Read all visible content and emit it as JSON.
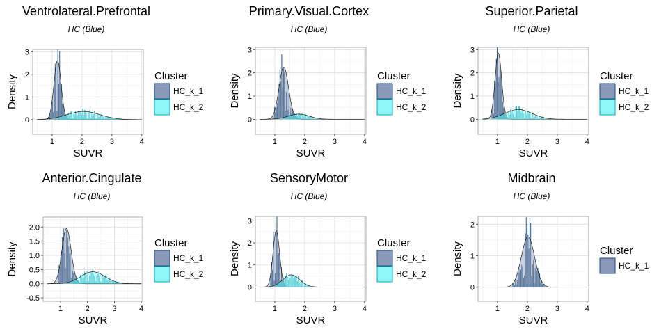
{
  "chart_data": [
    {
      "type": "histogram+density",
      "title": "Ventrolateral.Prefrontal",
      "subtitle": "HC (Blue)",
      "xlabel": "SUVR",
      "ylabel": "Density",
      "xlim": [
        0.35,
        4.05
      ],
      "ylim": [
        -0.65,
        3.1
      ],
      "xticks": [
        1,
        2,
        3,
        4
      ],
      "yticks": [
        0,
        1,
        2,
        3
      ],
      "ytick_labels": [
        "0",
        "1",
        "2",
        "3"
      ],
      "grid": true,
      "legend": {
        "title": "Cluster",
        "position": "right"
      },
      "series": [
        {
          "name": "HC_k_1",
          "color": "#1f4e79",
          "fill": "#8b9ab8",
          "curve": {
            "mu": 1.18,
            "sigma": 0.12,
            "peak": 2.6
          },
          "hist_range": [
            0.85,
            1.6
          ]
        },
        {
          "name": "HC_k_2",
          "color": "#17a3b8",
          "fill": "#8ef7f7",
          "curve": {
            "mu": 2.05,
            "sigma": 0.55,
            "peak": 0.36
          },
          "hist_range": [
            1.2,
            3.6
          ]
        }
      ]
    },
    {
      "type": "histogram+density",
      "title": "Primary.Visual.Cortex",
      "subtitle": "HC (Blue)",
      "xlabel": "SUVR",
      "ylabel": "Density",
      "xlim": [
        0.35,
        4.05
      ],
      "ylim": [
        -0.65,
        3.1
      ],
      "xticks": [
        1,
        2,
        3,
        4
      ],
      "yticks": [
        0,
        1,
        2,
        3
      ],
      "ytick_labels": [
        "0",
        "1",
        "2",
        "3"
      ],
      "grid": true,
      "legend": {
        "title": "Cluster",
        "position": "right"
      },
      "series": [
        {
          "name": "HC_k_1",
          "color": "#1f4e79",
          "fill": "#8b9ab8",
          "curve": {
            "mu": 1.3,
            "sigma": 0.16,
            "peak": 2.25
          },
          "hist_range": [
            0.95,
            1.8
          ]
        },
        {
          "name": "HC_k_2",
          "color": "#17a3b8",
          "fill": "#8ef7f7",
          "curve": {
            "mu": 1.8,
            "sigma": 0.35,
            "peak": 0.22
          },
          "hist_range": [
            1.3,
            2.5
          ]
        }
      ]
    },
    {
      "type": "histogram+density",
      "title": "Superior.Parietal",
      "subtitle": "HC (Blue)",
      "xlabel": "SUVR",
      "ylabel": "Density",
      "xlim": [
        0.35,
        4.05
      ],
      "ylim": [
        -0.65,
        3.1
      ],
      "xticks": [
        1,
        2,
        3,
        4
      ],
      "yticks": [
        0,
        1,
        2,
        3
      ],
      "ytick_labels": [
        "0",
        "1",
        "2",
        "3"
      ],
      "grid": true,
      "legend": {
        "title": "Cluster",
        "position": "right"
      },
      "series": [
        {
          "name": "HC_k_1",
          "color": "#1f4e79",
          "fill": "#8b9ab8",
          "curve": {
            "mu": 1.03,
            "sigma": 0.11,
            "peak": 2.85
          },
          "hist_range": [
            0.8,
            1.35
          ]
        },
        {
          "name": "HC_k_2",
          "color": "#17a3b8",
          "fill": "#8ef7f7",
          "curve": {
            "mu": 1.7,
            "sigma": 0.45,
            "peak": 0.42
          },
          "hist_range": [
            1.0,
            3.1
          ]
        }
      ]
    },
    {
      "type": "histogram+density",
      "title": "Anterior.Cingulate",
      "subtitle": "HC (Blue)",
      "xlabel": "SUVR",
      "ylabel": "Density",
      "xlim": [
        0.35,
        4.05
      ],
      "ylim": [
        -0.62,
        2.35
      ],
      "xticks": [
        1,
        2,
        3,
        4
      ],
      "yticks": [
        -0.5,
        0,
        0.5,
        1,
        1.5,
        2
      ],
      "ytick_labels": [
        "-0.5",
        "0.0",
        "0.5",
        "1.0",
        "1.5",
        "2.0"
      ],
      "grid": true,
      "legend": {
        "title": "Cluster",
        "position": "right"
      },
      "series": [
        {
          "name": "HC_k_1",
          "color": "#1f4e79",
          "fill": "#8b9ab8",
          "curve": {
            "mu": 1.22,
            "sigma": 0.17,
            "peak": 1.95
          },
          "hist_range": [
            0.9,
            1.75
          ]
        },
        {
          "name": "HC_k_2",
          "color": "#17a3b8",
          "fill": "#8ef7f7",
          "curve": {
            "mu": 2.2,
            "sigma": 0.45,
            "peak": 0.42
          },
          "hist_range": [
            1.4,
            3.5
          ]
        }
      ]
    },
    {
      "type": "histogram+density",
      "title": "SensoryMotor",
      "subtitle": "HC (Blue)",
      "xlabel": "SUVR",
      "ylabel": "Density",
      "xlim": [
        0.35,
        4.05
      ],
      "ylim": [
        -0.65,
        3.2
      ],
      "xticks": [
        1,
        2,
        3,
        4
      ],
      "yticks": [
        0,
        1,
        2,
        3
      ],
      "ytick_labels": [
        "0",
        "1",
        "2",
        "3"
      ],
      "grid": true,
      "legend": {
        "title": "Cluster",
        "position": "right"
      },
      "series": [
        {
          "name": "HC_k_1",
          "color": "#1f4e79",
          "fill": "#8b9ab8",
          "curve": {
            "mu": 1.05,
            "sigma": 0.11,
            "peak": 2.55
          },
          "hist_range": [
            0.85,
            1.35
          ]
        },
        {
          "name": "HC_k_2",
          "color": "#17a3b8",
          "fill": "#8ef7f7",
          "curve": {
            "mu": 1.55,
            "sigma": 0.28,
            "peak": 0.55
          },
          "hist_range": [
            1.05,
            2.5
          ]
        }
      ]
    },
    {
      "type": "histogram+density",
      "title": "Midbrain",
      "subtitle": "HC (Blue)",
      "xlabel": "SUVR",
      "ylabel": "Density",
      "xlim": [
        0.35,
        4.05
      ],
      "ylim": [
        -0.45,
        2.25
      ],
      "xticks": [
        1,
        2,
        3,
        4
      ],
      "yticks": [
        0,
        1,
        2
      ],
      "ytick_labels": [
        "0",
        "1",
        "2"
      ],
      "grid": true,
      "legend": {
        "title": "Cluster",
        "position": "right"
      },
      "series": [
        {
          "name": "HC_k_1",
          "color": "#1f4e79",
          "fill": "#8b9ab8",
          "curve": {
            "mu": 2.02,
            "sigma": 0.22,
            "peak": 1.6
          },
          "hist_range": [
            1.5,
            2.75
          ]
        }
      ]
    }
  ]
}
